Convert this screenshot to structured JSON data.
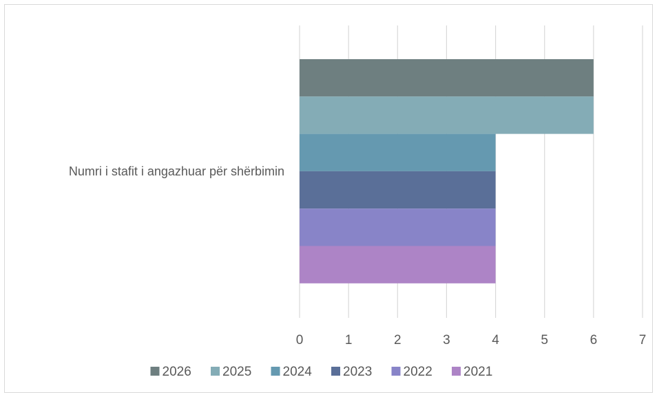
{
  "chart_data": {
    "type": "bar",
    "orientation": "horizontal",
    "categories": [
      "Numri i stafit i angazhuar për shërbimin"
    ],
    "series": [
      {
        "name": "2026",
        "values": [
          6
        ],
        "color": "#6e7f80"
      },
      {
        "name": "2025",
        "values": [
          6
        ],
        "color": "#84acb6"
      },
      {
        "name": "2024",
        "values": [
          4
        ],
        "color": "#6599b0"
      },
      {
        "name": "2023",
        "values": [
          4
        ],
        "color": "#5a6f98"
      },
      {
        "name": "2022",
        "values": [
          4
        ],
        "color": "#8884c8"
      },
      {
        "name": "2021",
        "values": [
          4
        ],
        "color": "#ad84c6"
      }
    ],
    "xlim": [
      0,
      7
    ],
    "x_ticks": [
      "0",
      "1",
      "2",
      "3",
      "4",
      "5",
      "6",
      "7"
    ],
    "grid": true,
    "legend_position": "bottom",
    "title": "",
    "xlabel": "",
    "ylabel": ""
  }
}
